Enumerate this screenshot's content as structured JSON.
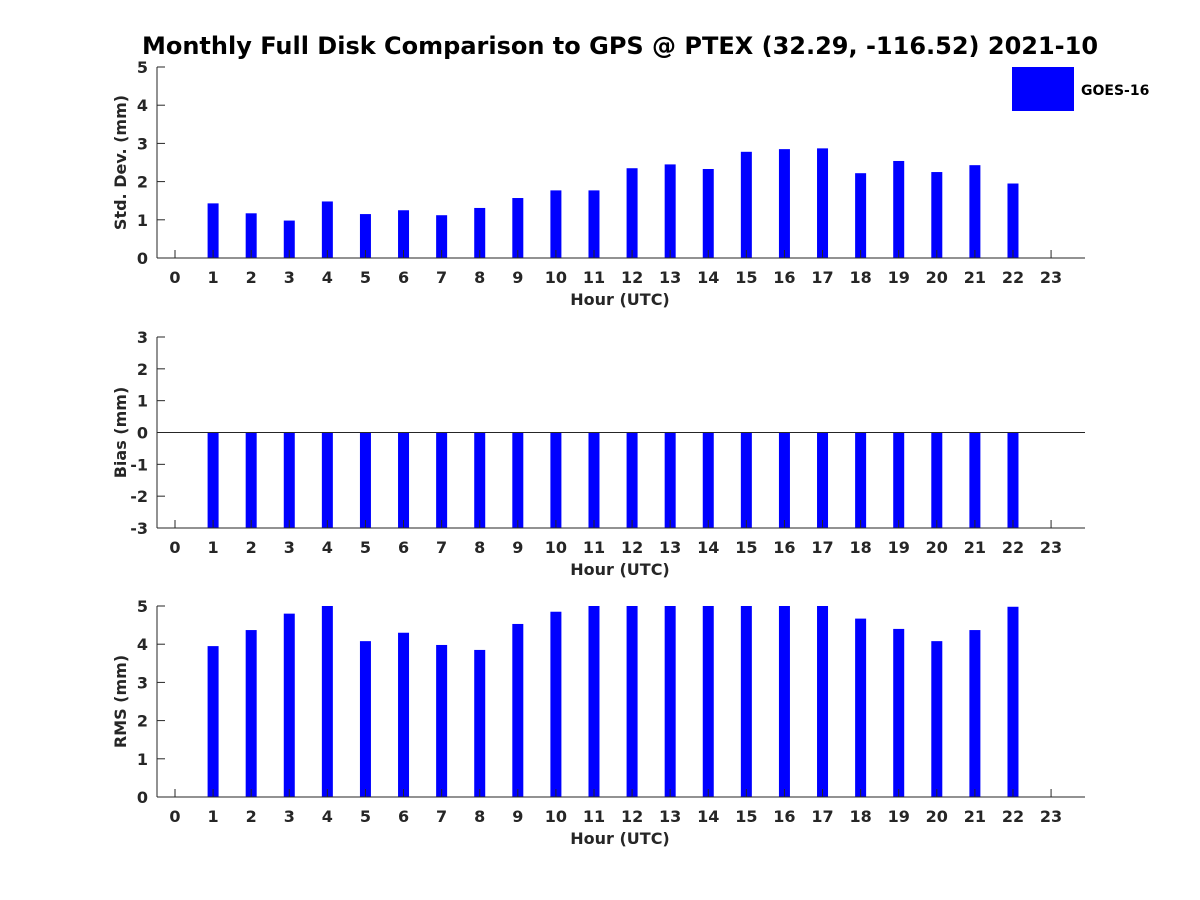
{
  "title": "Monthly Full Disk Comparison to GPS @ PTEX (32.29, -116.52) 2021-10",
  "legend": {
    "label": "GOES-16",
    "color": "#0000ff",
    "placement": "top-right"
  },
  "bar_color": "#0000ff",
  "chart_data": [
    {
      "type": "bar",
      "ylabel": "Std. Dev. (mm)",
      "xlabel": "Hour (UTC)",
      "ylim": [
        0,
        5
      ],
      "yticks": [
        0,
        1,
        2,
        3,
        4,
        5
      ],
      "categories": [
        0,
        1,
        2,
        3,
        4,
        5,
        6,
        7,
        8,
        9,
        10,
        11,
        12,
        13,
        14,
        15,
        16,
        17,
        18,
        19,
        20,
        21,
        22,
        23
      ],
      "series": [
        {
          "name": "GOES-16",
          "values": [
            null,
            1.43,
            1.17,
            0.98,
            1.48,
            1.15,
            1.25,
            1.12,
            1.31,
            1.57,
            1.77,
            1.77,
            2.35,
            2.45,
            2.33,
            2.78,
            2.85,
            2.87,
            2.22,
            2.54,
            2.25,
            2.43,
            1.95,
            null
          ]
        }
      ]
    },
    {
      "type": "bar",
      "ylabel": "Bias (mm)",
      "xlabel": "Hour (UTC)",
      "ylim": [
        -3,
        3
      ],
      "yticks": [
        -3,
        -2,
        -1,
        0,
        1,
        2,
        3
      ],
      "zero_line": true,
      "categories": [
        0,
        1,
        2,
        3,
        4,
        5,
        6,
        7,
        8,
        9,
        10,
        11,
        12,
        13,
        14,
        15,
        16,
        17,
        18,
        19,
        20,
        21,
        22,
        23
      ],
      "series": [
        {
          "name": "GOES-16",
          "values": [
            null,
            -3,
            -3,
            -3,
            -3,
            -3,
            -3,
            -3,
            -3,
            -3,
            -3,
            -3,
            -3,
            -3,
            -3,
            -3,
            -3,
            -3,
            -3,
            -3,
            -3,
            -3,
            -3,
            null
          ]
        }
      ]
    },
    {
      "type": "bar",
      "ylabel": "RMS (mm)",
      "xlabel": "Hour (UTC)",
      "ylim": [
        0,
        5
      ],
      "yticks": [
        0,
        1,
        2,
        3,
        4,
        5
      ],
      "categories": [
        0,
        1,
        2,
        3,
        4,
        5,
        6,
        7,
        8,
        9,
        10,
        11,
        12,
        13,
        14,
        15,
        16,
        17,
        18,
        19,
        20,
        21,
        22,
        23
      ],
      "series": [
        {
          "name": "GOES-16",
          "values": [
            null,
            3.95,
            4.37,
            4.8,
            5,
            4.08,
            4.3,
            3.98,
            3.85,
            4.53,
            4.85,
            5,
            5,
            5,
            5,
            5,
            5,
            5,
            4.67,
            4.4,
            4.08,
            4.37,
            4.98,
            null
          ]
        }
      ]
    }
  ]
}
